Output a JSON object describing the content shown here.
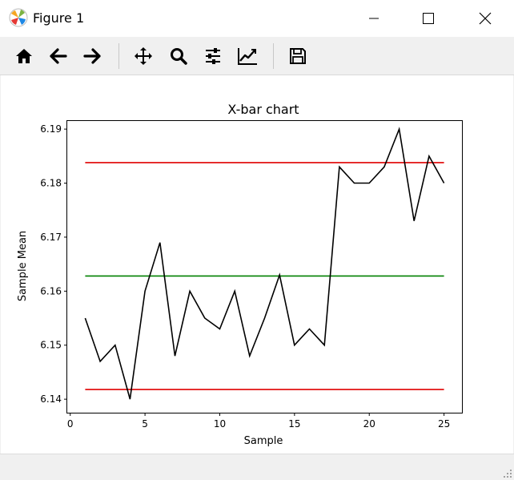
{
  "window": {
    "title": "Figure 1",
    "minimize_icon": "minimize-icon",
    "maximize_icon": "maximize-icon",
    "close_icon": "close-icon"
  },
  "toolbar": {
    "tools": [
      {
        "name": "home",
        "icon": "home-icon"
      },
      {
        "name": "back",
        "icon": "arrow-left-icon"
      },
      {
        "name": "forward",
        "icon": "arrow-right-icon"
      },
      {
        "name": "pan",
        "icon": "move-icon"
      },
      {
        "name": "zoom",
        "icon": "magnifier-icon"
      },
      {
        "name": "configure-subplots",
        "icon": "sliders-icon"
      },
      {
        "name": "edit-axis",
        "icon": "line-chart-icon"
      },
      {
        "name": "save",
        "icon": "floppy-disk-icon"
      }
    ]
  },
  "status": {
    "message": ""
  },
  "chart_data": {
    "type": "line",
    "title": "X-bar chart",
    "xlabel": "Sample",
    "ylabel": "Sample Mean",
    "xlim": [
      -0.2,
      26.2
    ],
    "ylim": [
      6.1375,
      6.1915
    ],
    "xticks": [
      0,
      5,
      10,
      15,
      20,
      25
    ],
    "yticks": [
      6.14,
      6.15,
      6.16,
      6.17,
      6.18,
      6.19
    ],
    "ytick_labels": [
      "6.14",
      "6.15",
      "6.16",
      "6.17",
      "6.18",
      "6.19"
    ],
    "grid": false,
    "x": [
      1,
      2,
      3,
      4,
      5,
      6,
      7,
      8,
      9,
      10,
      11,
      12,
      13,
      14,
      15,
      16,
      17,
      18,
      19,
      20,
      21,
      22,
      23,
      24,
      25
    ],
    "series": [
      {
        "color": "#000000",
        "values": [
          6.155,
          6.147,
          6.15,
          6.14,
          6.16,
          6.169,
          6.148,
          6.16,
          6.155,
          6.153,
          6.16,
          6.148,
          6.155,
          6.163,
          6.15,
          6.153,
          6.15,
          6.183,
          6.18,
          6.18,
          6.183,
          6.19,
          6.173,
          6.185,
          6.18
        ]
      }
    ],
    "reference_lines": [
      {
        "y": 6.1838,
        "x_from": 1,
        "x_to": 25,
        "color": "#e00000"
      },
      {
        "y": 6.1628,
        "x_from": 1,
        "x_to": 25,
        "color": "#008000"
      },
      {
        "y": 6.1418,
        "x_from": 1,
        "x_to": 25,
        "color": "#e00000"
      }
    ]
  }
}
